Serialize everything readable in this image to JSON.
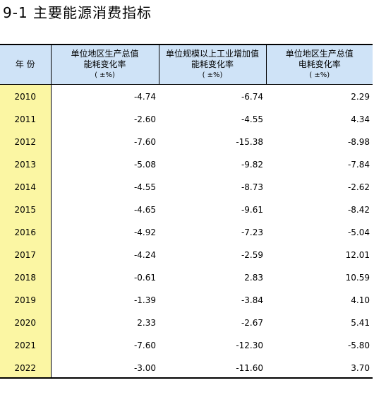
{
  "title": "9-1  主要能源消费指标",
  "table": {
    "headers": [
      {
        "lines": [
          "年  份"
        ],
        "unit": ""
      },
      {
        "lines": [
          "单位地区生产总值",
          "能耗变化率"
        ],
        "unit": "( ±%)"
      },
      {
        "lines": [
          "单位规模以上工业增加值",
          "能耗变化率"
        ],
        "unit": "( ±%)"
      },
      {
        "lines": [
          "单位地区生产总值",
          "电耗变化率"
        ],
        "unit": "( ±%)"
      }
    ],
    "rows": [
      {
        "year": "2010",
        "v1": "-4.74",
        "v2": "-6.74",
        "v3": "2.29"
      },
      {
        "year": "2011",
        "v1": "-2.60",
        "v2": "-4.55",
        "v3": "4.34"
      },
      {
        "year": "2012",
        "v1": "-7.60",
        "v2": "-15.38",
        "v3": "-8.98"
      },
      {
        "year": "2013",
        "v1": "-5.08",
        "v2": "-9.82",
        "v3": "-7.84"
      },
      {
        "year": "2014",
        "v1": "-4.55",
        "v2": "-8.73",
        "v3": "-2.62"
      },
      {
        "year": "2015",
        "v1": "-4.65",
        "v2": "-9.61",
        "v3": "-8.42"
      },
      {
        "year": "2016",
        "v1": "-4.92",
        "v2": "-7.23",
        "v3": "-5.04"
      },
      {
        "year": "2017",
        "v1": "-4.24",
        "v2": "-2.59",
        "v3": "12.01"
      },
      {
        "year": "2018",
        "v1": "-0.61",
        "v2": "2.83",
        "v3": "10.59"
      },
      {
        "year": "2019",
        "v1": "-1.39",
        "v2": "-3.84",
        "v3": "4.10"
      },
      {
        "year": "2020",
        "v1": "2.33",
        "v2": "-2.67",
        "v3": "5.41"
      },
      {
        "year": "2021",
        "v1": "-7.60",
        "v2": "-12.30",
        "v3": "-5.80"
      },
      {
        "year": "2022",
        "v1": "-3.00",
        "v2": "-11.60",
        "v3": "3.70"
      }
    ]
  },
  "colors": {
    "header_bg": "#cfe3f7",
    "year_bg": "#fbf6a3"
  }
}
